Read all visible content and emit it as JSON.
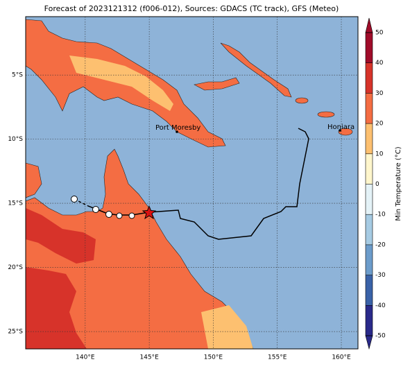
{
  "map": {
    "title": "Forecast of 2023121312 (f006-012), Sources: GDACS (TC track), GFS (Meteo)",
    "xlim": [
      135.35,
      161.3
    ],
    "ylim": [
      -26.35,
      -0.45
    ],
    "xticks": [
      {
        "value": 140,
        "label": "140°E"
      },
      {
        "value": 145,
        "label": "145°E"
      },
      {
        "value": 150,
        "label": "150°E"
      },
      {
        "value": 155,
        "label": "155°E"
      },
      {
        "value": 160,
        "label": "160°E"
      }
    ],
    "yticks": [
      {
        "value": -5,
        "label": "5°S"
      },
      {
        "value": -10,
        "label": "10°S"
      },
      {
        "value": -15,
        "label": "15°S"
      },
      {
        "value": -20,
        "label": "20°S"
      },
      {
        "value": -25,
        "label": "25°S"
      }
    ],
    "places": [
      {
        "name": "Port Moresby"
      },
      {
        "name": "Honiara"
      }
    ],
    "colorbar": {
      "label": "Min Temperature (°C)",
      "ticks": [
        -50,
        -40,
        -30,
        -20,
        -10,
        0,
        10,
        20,
        30,
        40,
        50
      ],
      "colors": [
        "#2a2a8a",
        "#3a62a8",
        "#6c9ccb",
        "#a6cbe3",
        "#e4f2f7",
        "#fff6cc",
        "#fdc070",
        "#f46d43",
        "#d7332a",
        "#a00c2a"
      ]
    }
  }
}
